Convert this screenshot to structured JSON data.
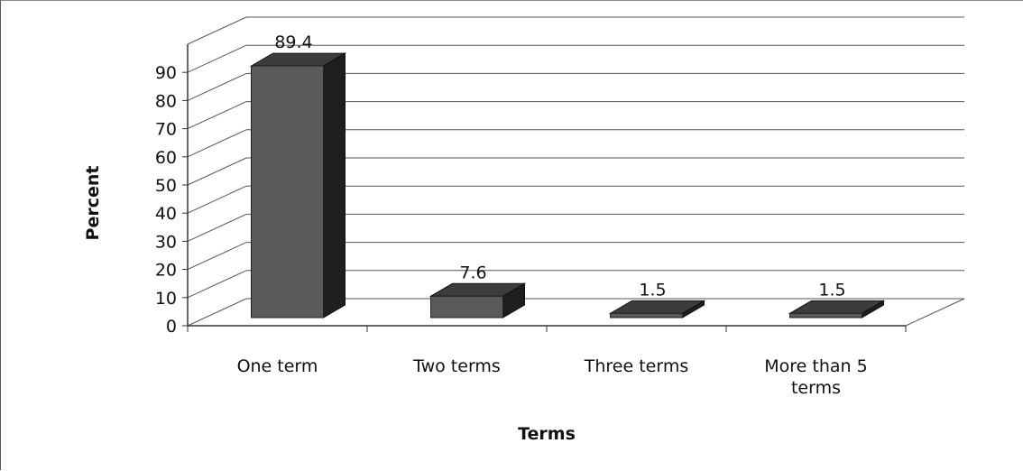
{
  "chart_data": {
    "type": "bar",
    "style": "3d-column",
    "categories": [
      "One term",
      "Two terms",
      "Three terms",
      "More than 5 terms"
    ],
    "values": [
      89.4,
      7.6,
      1.5,
      1.5
    ],
    "data_labels": [
      "89.4",
      "7.6",
      "1.5",
      "1.5"
    ],
    "title": "",
    "xlabel": "Terms",
    "ylabel": "Percent",
    "ylim": [
      0,
      90
    ],
    "yticks": [
      0,
      10,
      20,
      30,
      40,
      50,
      60,
      70,
      80,
      90
    ],
    "grid": true,
    "legend": "none",
    "colors": {
      "bar_front": "#5a5a5a",
      "bar_top": "#3c3c3c",
      "bar_side": "#1e1e1e",
      "grid": "#555555"
    }
  }
}
